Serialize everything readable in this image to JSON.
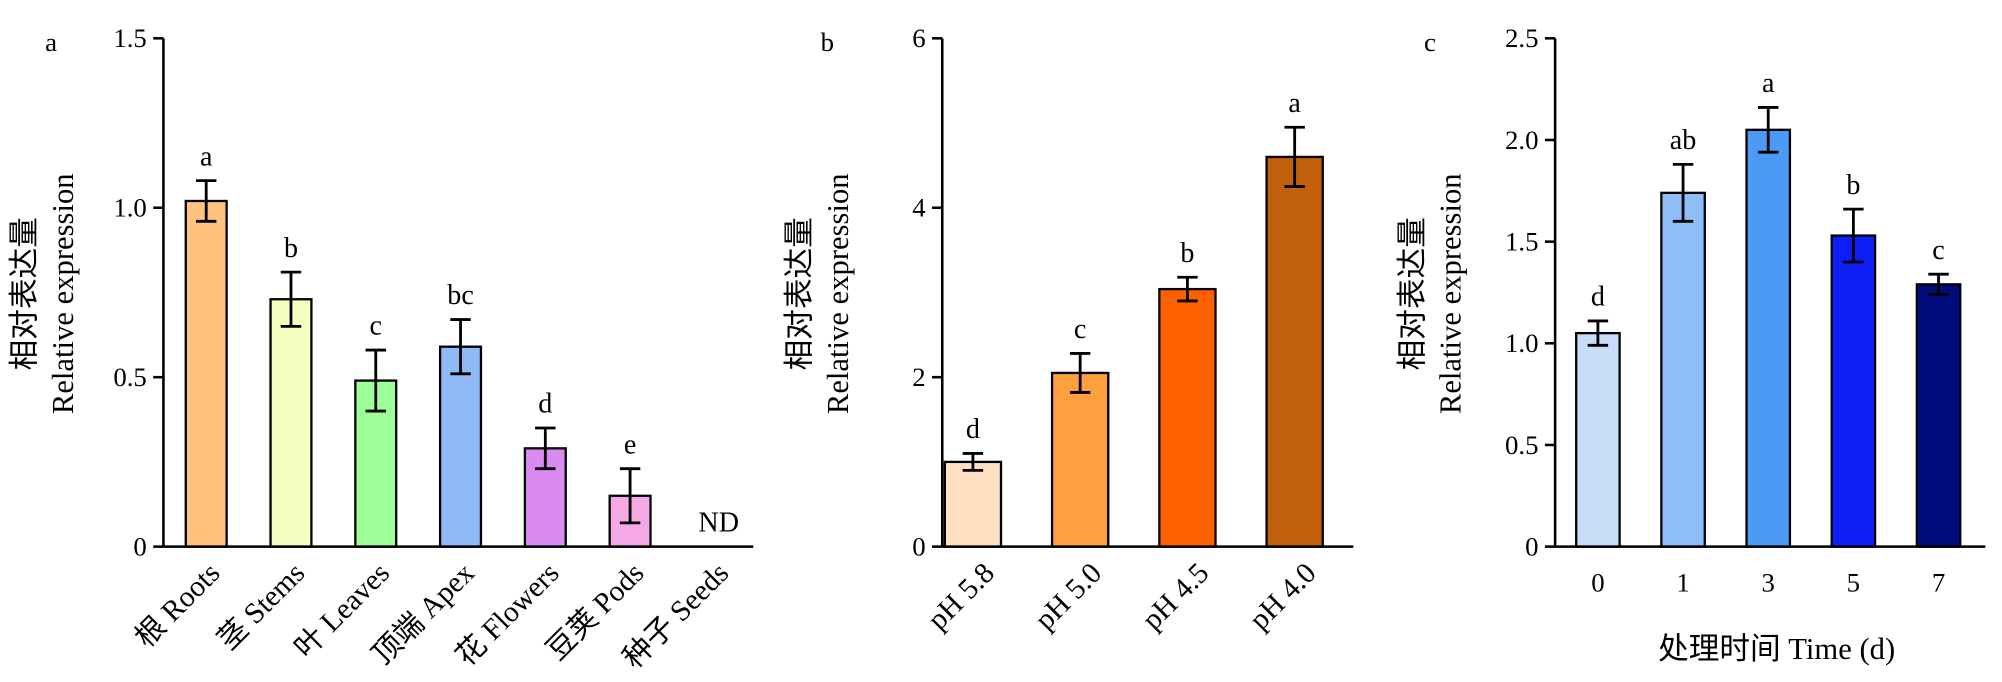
{
  "chart_data": [
    {
      "type": "bar",
      "panel_label": "a",
      "categories": [
        "根 Roots",
        "茎 Stems",
        "叶 Leaves",
        "顶端 Apex",
        "花 Flowers",
        "豆荚 Pods",
        "种子 Seeds"
      ],
      "values": [
        1.02,
        0.73,
        0.49,
        0.59,
        0.29,
        0.15,
        null
      ],
      "errors": [
        0.06,
        0.08,
        0.09,
        0.08,
        0.06,
        0.08,
        null
      ],
      "annotations": [
        "a",
        "b",
        "c",
        "bc",
        "d",
        "e",
        "ND"
      ],
      "colors": [
        "#FFC27F",
        "#F2FFBE",
        "#9EFF99",
        "#8FBBF5",
        "#DA8BF0",
        "#F5A8E6",
        null
      ],
      "ylabel": [
        "相对表达量",
        "Relative expression"
      ],
      "ylim": [
        0,
        1.5
      ],
      "yticks": [
        "0",
        "0.5",
        "1.0",
        "1.5"
      ]
    },
    {
      "type": "bar",
      "panel_label": "b",
      "categories": [
        "pH 5.8",
        "pH 5.0",
        "pH 4.5",
        "pH 4.0"
      ],
      "values": [
        1.0,
        2.05,
        3.04,
        4.6
      ],
      "errors": [
        0.1,
        0.23,
        0.14,
        0.35
      ],
      "annotations": [
        "d",
        "c",
        "b",
        "a"
      ],
      "colors": [
        "#FFE1C2",
        "#FFA040",
        "#FF6000",
        "#C0600A"
      ],
      "ylabel": [
        "相对表达量",
        "Relative expression"
      ],
      "ylim": [
        0,
        6
      ],
      "yticks": [
        "0",
        "2",
        "4",
        "6"
      ]
    },
    {
      "type": "bar",
      "panel_label": "c",
      "categories": [
        "0",
        "1",
        "3",
        "5",
        "7"
      ],
      "values": [
        1.05,
        1.74,
        2.05,
        1.53,
        1.29
      ],
      "errors": [
        0.06,
        0.14,
        0.11,
        0.13,
        0.05
      ],
      "annotations": [
        "d",
        "ab",
        "a",
        "b",
        "c"
      ],
      "colors": [
        "#C9DCF7",
        "#8FBEF7",
        "#4B9AF5",
        "#0A1EF5",
        "#000C7A"
      ],
      "ylabel": [
        "相对表达量",
        "Relative expression"
      ],
      "xlabel": "处理时间 Time (d)",
      "ylim": [
        0,
        2.5
      ],
      "yticks": [
        "0",
        "0.5",
        "1.0",
        "1.5",
        "2.0",
        "2.5"
      ]
    }
  ]
}
